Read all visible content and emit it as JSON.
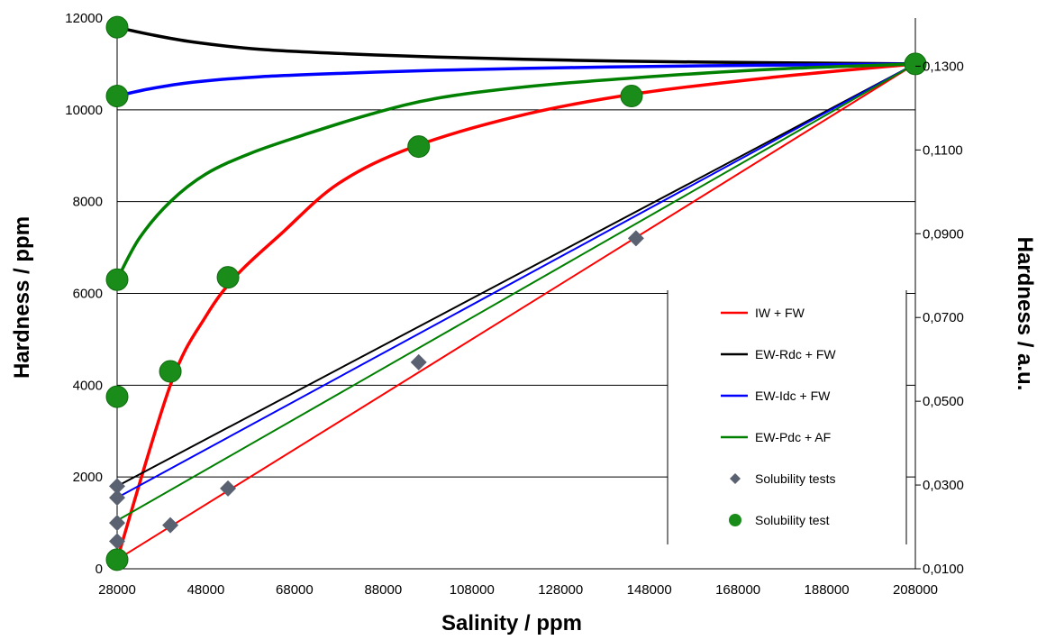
{
  "chart_data": {
    "type": "line",
    "title": "",
    "xlabel": "Salinity / ppm",
    "ylabel": "Hardness / ppm",
    "y2label": "Hardness / a.u.",
    "xlim": [
      28000,
      208000
    ],
    "ylim": [
      0,
      12000
    ],
    "y2lim": [
      0.01,
      0.1415
    ],
    "x_ticks": [
      "28000",
      "48000",
      "68000",
      "88000",
      "108000",
      "128000",
      "148000",
      "168000",
      "188000",
      "208000"
    ],
    "y_ticks": [
      "0",
      "2000",
      "4000",
      "6000",
      "8000",
      "10000",
      "12000"
    ],
    "y2_ticks": [
      {
        "value": 0.01,
        "label": "0,0100"
      },
      {
        "value": 0.03,
        "label": "0,0300"
      },
      {
        "value": 0.05,
        "label": "0,0500"
      },
      {
        "value": 0.07,
        "label": "0,0700"
      },
      {
        "value": 0.09,
        "label": "0,0900"
      },
      {
        "value": 0.11,
        "label": "0,1100"
      },
      {
        "value": 0.13,
        "label": "0,1300"
      }
    ],
    "gridlines": "horizontal",
    "legend_placement": "bottom-right",
    "series": [
      {
        "name": "IW + FW",
        "color": "#ff0000",
        "axis": "left",
        "x": [
          28000,
          40000,
          48000,
          55000,
          65000,
          78000,
          95000,
          120000,
          145000,
          175000,
          208000
        ],
        "y": [
          200,
          4000,
          5500,
          6400,
          7300,
          8400,
          9200,
          9900,
          10350,
          10700,
          11000
        ]
      },
      {
        "name": "EW-Rdc + FW",
        "color": "#000000",
        "axis": "left",
        "x": [
          28000,
          35000,
          45000,
          60000,
          80000,
          100000,
          130000,
          160000,
          208000
        ],
        "y": [
          11800,
          11650,
          11480,
          11320,
          11220,
          11150,
          11080,
          11040,
          11000
        ]
      },
      {
        "name": "EW-Idc  + FW",
        "color": "#0000ff",
        "axis": "left",
        "x": [
          28000,
          35000,
          45000,
          60000,
          80000,
          100000,
          130000,
          160000,
          208000
        ],
        "y": [
          10300,
          10450,
          10600,
          10720,
          10800,
          10860,
          10920,
          10960,
          11000
        ]
      },
      {
        "name": "EW-Pdc + AF",
        "color": "#008000",
        "axis": "left",
        "x": [
          28000,
          33000,
          40000,
          48000,
          58000,
          70000,
          85000,
          100000,
          120000,
          145000,
          175000,
          208000
        ],
        "y": [
          6300,
          7200,
          8000,
          8600,
          9050,
          9450,
          9900,
          10250,
          10500,
          10700,
          10880,
          11000
        ]
      },
      {
        "name": "",
        "color": "#ff0000",
        "axis": "left",
        "x": [
          28000,
          208000
        ],
        "y": [
          200,
          11000
        ]
      },
      {
        "name": "",
        "color": "#000000",
        "axis": "left",
        "x": [
          28000,
          208000
        ],
        "y": [
          1800,
          11000
        ]
      },
      {
        "name": "",
        "color": "#0000ff",
        "axis": "left",
        "x": [
          28000,
          208000
        ],
        "y": [
          1550,
          11000
        ]
      },
      {
        "name": "",
        "color": "#008000",
        "axis": "left",
        "x": [
          28000,
          208000
        ],
        "y": [
          1050,
          11000
        ]
      }
    ],
    "scatter": [
      {
        "name": "Solubility tests",
        "marker": "diamond",
        "color": "#5a6272",
        "x": [
          28000,
          28000,
          28000,
          28000,
          40000,
          53000,
          96000,
          145000
        ],
        "y": [
          1800,
          1550,
          1000,
          600,
          950,
          1750,
          4500,
          7200
        ]
      },
      {
        "name": "Solubility test",
        "marker": "circle",
        "color": "#1a8c1a",
        "x": [
          28000,
          28000,
          28000,
          28000,
          28000,
          40000,
          53000,
          96000,
          144000,
          208000
        ],
        "y": [
          11800,
          10300,
          6300,
          3750,
          200,
          4300,
          6350,
          9200,
          10300,
          11000
        ]
      }
    ],
    "legend": [
      {
        "label": "IW + FW",
        "type": "line",
        "color": "#ff0000"
      },
      {
        "label": "EW-Rdc + FW",
        "type": "line",
        "color": "#000000"
      },
      {
        "label": "EW-Idc  + FW",
        "type": "line",
        "color": "#0000ff"
      },
      {
        "label": "EW-Pdc + AF",
        "type": "line",
        "color": "#008000"
      },
      {
        "label": "Solubility tests",
        "type": "diamond",
        "color": "#5a6272"
      },
      {
        "label": "Solubility test",
        "type": "circle",
        "color": "#1a8c1a"
      }
    ]
  }
}
